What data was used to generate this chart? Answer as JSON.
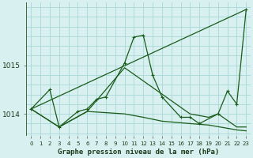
{
  "bg_color": "#d8f0f0",
  "grid_color": "#a8d8d8",
  "line_color": "#1a5c1a",
  "title": "Graphe pression niveau de la mer (hPa)",
  "xlim": [
    -0.5,
    23.5
  ],
  "ylim": [
    1013.55,
    1016.3
  ],
  "yticks": [
    1014,
    1015
  ],
  "xtick_labels": [
    "0",
    "1",
    "2",
    "3",
    "4",
    "5",
    "6",
    "7",
    "8",
    "9",
    "10",
    "11",
    "12",
    "13",
    "14",
    "15",
    "16",
    "17",
    "18",
    "19",
    "20",
    "21",
    "22",
    "23"
  ],
  "series1_x": [
    0,
    2,
    3,
    5,
    6,
    7,
    8,
    10,
    11,
    12,
    13,
    14,
    16,
    17,
    18,
    20,
    21,
    22,
    23
  ],
  "series1_y": [
    1014.1,
    1014.5,
    1013.73,
    1014.05,
    1014.1,
    1014.3,
    1014.35,
    1015.05,
    1015.58,
    1015.62,
    1014.8,
    1014.35,
    1013.93,
    1013.93,
    1013.8,
    1014.0,
    1014.47,
    1014.2,
    1016.15
  ],
  "series2_x": [
    0,
    23
  ],
  "series2_y": [
    1014.1,
    1016.15
  ],
  "series3_x": [
    0,
    3,
    6,
    10,
    17,
    19,
    20,
    22,
    23
  ],
  "series3_y": [
    1014.1,
    1013.73,
    1014.05,
    1014.95,
    1014.0,
    1013.93,
    1014.0,
    1013.73,
    1013.73
  ],
  "series4_x": [
    0,
    3,
    6,
    10,
    12,
    14,
    17,
    19,
    22,
    23
  ],
  "series4_y": [
    1014.1,
    1013.73,
    1014.05,
    1014.0,
    1013.93,
    1013.85,
    1013.8,
    1013.77,
    1013.67,
    1013.65
  ]
}
